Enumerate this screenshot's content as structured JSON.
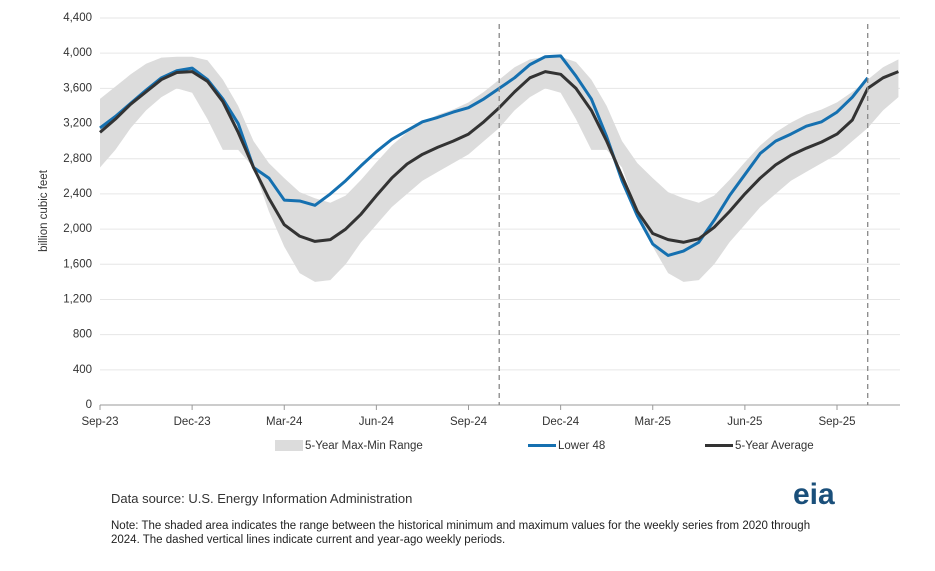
{
  "chart_data": {
    "type": "line",
    "y_label": "billion cubic feet",
    "categories": [
      "Sep-23",
      null,
      null,
      null,
      null,
      null,
      "Dec-23",
      null,
      null,
      null,
      null,
      null,
      "Mar-24",
      null,
      null,
      null,
      null,
      null,
      "Jun-24",
      null,
      null,
      null,
      null,
      null,
      "Sep-24",
      null,
      null,
      null,
      null,
      null,
      "Dec-24",
      null,
      null,
      null,
      null,
      null,
      "Mar-25",
      null,
      null,
      null,
      null,
      null,
      "Jun-25",
      null,
      null,
      null,
      null,
      null,
      "Sep-25",
      null,
      null,
      null,
      null
    ],
    "ylim": [
      0,
      4400
    ],
    "yticks": [
      0,
      400,
      800,
      {
        "value": 1200,
        "label": "1,200"
      },
      {
        "value": 1600,
        "label": "1,600"
      },
      {
        "value": 2000,
        "label": "2,000"
      },
      {
        "value": 2400,
        "label": "2,400"
      },
      {
        "value": 2800,
        "label": "2,800"
      },
      {
        "value": 3200,
        "label": "3,200"
      },
      {
        "value": 3600,
        "label": "3,600"
      },
      {
        "value": 4000,
        "label": "4,000"
      },
      {
        "value": 4400,
        "label": "4,400"
      }
    ],
    "grid": true,
    "current_periods": [
      26,
      50
    ],
    "series": [
      {
        "name": "5-Year Max-Min Range",
        "color": "#dcdcdc",
        "values": [
          3480,
          3620,
          3760,
          3880,
          3950,
          3960,
          3960,
          3920,
          3700,
          3400,
          3000,
          2750,
          2580,
          2420,
          2350,
          2300,
          2380,
          2560,
          2760,
          2950,
          3100,
          3210,
          3300,
          3360,
          3440,
          3560,
          3700,
          3840,
          3930,
          3960,
          3960,
          3900,
          3700,
          3400,
          3000,
          2750,
          2580,
          2420,
          2350,
          2300,
          2380,
          2560,
          2760,
          2950,
          3100,
          3210,
          3300,
          3360,
          3440,
          3560,
          3700,
          3840,
          3930
        ],
        "low": [
          2700,
          2900,
          3150,
          3350,
          3500,
          3600,
          3550,
          3250,
          2900,
          2900,
          2700,
          2200,
          1800,
          1500,
          1400,
          1420,
          1600,
          1850,
          2050,
          2250,
          2400,
          2550,
          2650,
          2750,
          2850,
          3000,
          3150,
          3350,
          3500,
          3600,
          3550,
          3250,
          2900,
          2900,
          2700,
          2200,
          1800,
          1500,
          1400,
          1420,
          1600,
          1850,
          2050,
          2250,
          2400,
          2550,
          2650,
          2750,
          2850,
          3000,
          3150,
          3350,
          3500
        ]
      },
      {
        "name": "Lower 48",
        "color": "#1570b0",
        "values": [
          3150,
          3280,
          3430,
          3580,
          3720,
          3800,
          3830,
          3700,
          3480,
          3200,
          2700,
          2580,
          2330,
          2320,
          2270,
          2400,
          2550,
          2720,
          2880,
          3020,
          3120,
          3220,
          3270,
          3330,
          3380,
          3480,
          3600,
          3720,
          3870,
          3960,
          3970,
          3740,
          3480,
          3050,
          2550,
          2150,
          1830,
          1700,
          1750,
          1850,
          2100,
          2380,
          2620,
          2860,
          3000,
          3080,
          3170,
          3220,
          3330,
          3500,
          3720,
          null,
          null
        ]
      },
      {
        "name": "5-Year Average",
        "color": "#333333",
        "values": [
          3100,
          3250,
          3420,
          3560,
          3700,
          3780,
          3790,
          3680,
          3450,
          3100,
          2700,
          2350,
          2050,
          1920,
          1860,
          1880,
          2000,
          2170,
          2380,
          2580,
          2740,
          2850,
          2930,
          3000,
          3080,
          3220,
          3380,
          3560,
          3720,
          3790,
          3760,
          3600,
          3350,
          3000,
          2600,
          2200,
          1950,
          1880,
          1850,
          1890,
          2020,
          2200,
          2400,
          2580,
          2730,
          2840,
          2920,
          2990,
          3080,
          3240,
          3600,
          3720,
          3790
        ]
      }
    ]
  },
  "source": "Data source: U.S. Energy Information Administration",
  "note": "Note: The shaded area indicates the range between the historical minimum and maximum values for the weekly series from 2020 through 2024. The dashed vertical lines indicate current and year-ago weekly periods.",
  "logo": "eia"
}
